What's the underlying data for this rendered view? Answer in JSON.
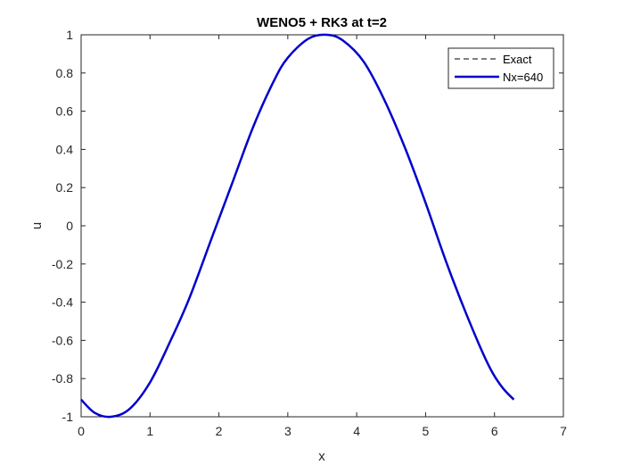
{
  "chart_data": {
    "type": "line",
    "title": "WENO5 + RK3 at t=2",
    "xlabel": "x",
    "ylabel": "u",
    "xlim": [
      0,
      7
    ],
    "ylim": [
      -1,
      1
    ],
    "xticks": [
      0,
      1,
      2,
      3,
      4,
      5,
      6,
      7
    ],
    "yticks": [
      -1,
      -0.8,
      -0.6,
      -0.4,
      -0.2,
      0,
      0.2,
      0.4,
      0.6,
      0.8,
      1
    ],
    "xtick_labels": [
      "0",
      "1",
      "2",
      "3",
      "4",
      "5",
      "6",
      "7"
    ],
    "ytick_labels": [
      "-1",
      "-0.8",
      "-0.6",
      "-0.4",
      "-0.2",
      "0",
      "0.2",
      "0.4",
      "0.6",
      "0.8",
      "1"
    ],
    "grid": false,
    "legend_position": "top-right",
    "series": [
      {
        "name": "Exact",
        "style": "dashed",
        "color": "#000000",
        "x": [
          0,
          0.2,
          0.43,
          0.7,
          1.0,
          1.3,
          1.57,
          1.9,
          2.2,
          2.5,
          2.8,
          3.0,
          3.3,
          3.57,
          3.8,
          4.1,
          4.4,
          4.71,
          5.0,
          5.3,
          5.6,
          5.9,
          6.1,
          6.28
        ],
        "y": [
          -0.91,
          -0.98,
          -1.0,
          -0.96,
          -0.82,
          -0.6,
          -0.38,
          -0.06,
          0.23,
          0.52,
          0.76,
          0.88,
          0.98,
          1.0,
          0.97,
          0.86,
          0.66,
          0.4,
          0.12,
          -0.19,
          -0.47,
          -0.72,
          -0.84,
          -0.91
        ]
      },
      {
        "name": "Nx=640",
        "style": "solid",
        "color": "#0000cc",
        "x": [
          0,
          0.2,
          0.43,
          0.7,
          1.0,
          1.3,
          1.57,
          1.9,
          2.2,
          2.5,
          2.8,
          3.0,
          3.3,
          3.57,
          3.8,
          4.1,
          4.4,
          4.71,
          5.0,
          5.3,
          5.6,
          5.9,
          6.1,
          6.28
        ],
        "y": [
          -0.91,
          -0.98,
          -1.0,
          -0.96,
          -0.82,
          -0.6,
          -0.38,
          -0.06,
          0.23,
          0.52,
          0.76,
          0.88,
          0.98,
          1.0,
          0.97,
          0.86,
          0.66,
          0.4,
          0.12,
          -0.19,
          -0.47,
          -0.72,
          -0.84,
          -0.91
        ]
      }
    ]
  }
}
